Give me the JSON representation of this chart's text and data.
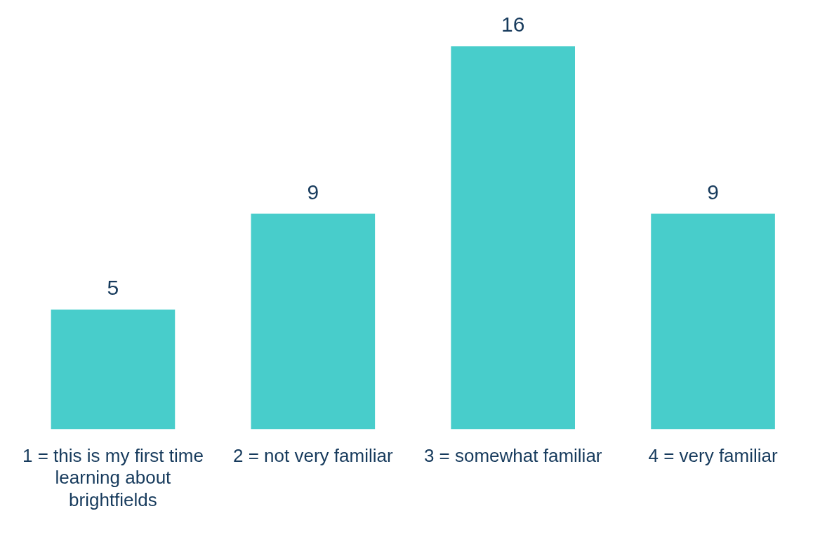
{
  "chart_data": {
    "type": "bar",
    "categories": [
      "1 = this is my first time learning about brightfields",
      "2 = not very familiar",
      "3 = somewhat familiar",
      "4 = very familiar"
    ],
    "values": [
      5,
      9,
      16,
      9
    ],
    "color": "#48cdcb",
    "data_labels": true,
    "grid": false,
    "legend": false
  }
}
